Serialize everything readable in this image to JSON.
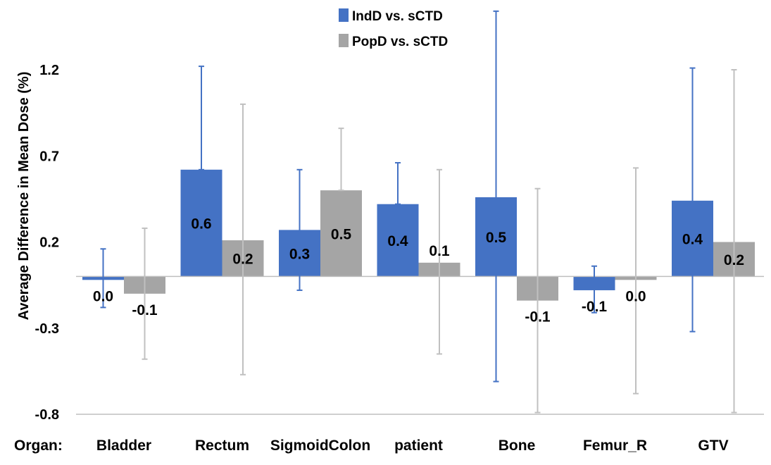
{
  "chart_data": {
    "type": "bar",
    "categories": [
      "Bladder",
      "Rectum",
      "SigmoidColon",
      "patient",
      "Bone",
      "Femur_R",
      "GTV"
    ],
    "category_prefix": "Organ:",
    "ylabel": "Average Difference in Mean Dose (%)",
    "xlabel": "",
    "ylim": [
      -0.8,
      1.55
    ],
    "yticks": [
      -0.8,
      -0.3,
      0.2,
      0.7,
      1.2
    ],
    "ytick_labels": [
      "-0.8",
      "-0.3",
      "0.2",
      "0.7",
      "1.2"
    ],
    "grid": false,
    "legend_position": "top",
    "series": [
      {
        "name": "IndD vs. sCTD",
        "color": "#4472C4",
        "values": [
          -0.02,
          0.62,
          0.27,
          0.42,
          0.46,
          -0.08,
          0.44
        ],
        "labels": [
          "0.0",
          "0.6",
          "0.3",
          "0.4",
          "0.5",
          "-0.1",
          "0.4"
        ],
        "error_low": [
          -0.18,
          0.62,
          -0.08,
          0.42,
          -0.61,
          -0.21,
          -0.32
        ],
        "error_high": [
          0.16,
          1.22,
          0.62,
          0.66,
          1.54,
          0.06,
          1.21
        ]
      },
      {
        "name": "PopD vs. sCTD",
        "color": "#A5A5A5",
        "values": [
          -0.1,
          0.21,
          0.5,
          0.08,
          -0.14,
          -0.02,
          0.2
        ],
        "labels": [
          "-0.1",
          "0.2",
          "0.5",
          "0.1",
          "-0.1",
          "0.0",
          "0.2"
        ],
        "error_low": [
          -0.48,
          -0.57,
          0.5,
          -0.45,
          -0.79,
          -0.68,
          -0.79
        ],
        "error_high": [
          0.28,
          1.0,
          0.86,
          0.62,
          0.51,
          0.63,
          1.2
        ]
      }
    ]
  }
}
